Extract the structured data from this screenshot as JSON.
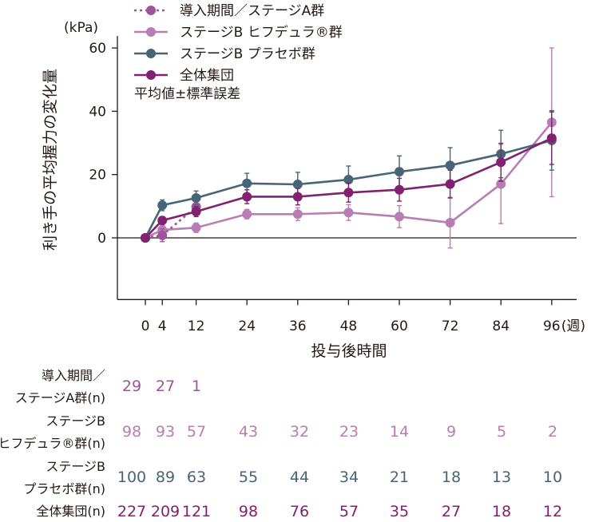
{
  "chart_data": {
    "type": "line",
    "ylabel": "利き手の平均握力の変化量",
    "yunit": "(kPa)",
    "xlabel": "投与後時間",
    "xunit": "(週)",
    "ylim": [
      -20,
      60
    ],
    "yticks": [
      0,
      20,
      40,
      60
    ],
    "xticks": [
      0,
      4,
      12,
      24,
      36,
      48,
      60,
      72,
      84,
      96
    ],
    "grid": false,
    "legend_position": "top",
    "error_note": "平均値±標準誤差",
    "series": [
      {
        "name": "導入期間／ステージA群",
        "color": "#a0529a",
        "dashed": true,
        "x": [
          0,
          4,
          12
        ],
        "y": [
          0,
          0.8,
          9.8
        ],
        "se": [
          0,
          2.0,
          0.8
        ]
      },
      {
        "name": "ステージB ヒフデュラ®群",
        "color": "#b87db2",
        "dashed": false,
        "x": [
          0,
          4,
          12,
          24,
          36,
          48,
          60,
          72,
          84,
          96
        ],
        "y": [
          0,
          2.5,
          3.2,
          7.5,
          7.5,
          8.0,
          6.7,
          4.8,
          17.0,
          36.5
        ],
        "se": [
          0,
          1.5,
          1.5,
          1.5,
          2.0,
          2.5,
          3.5,
          8.0,
          12.5,
          23.5
        ]
      },
      {
        "name": "ステージB プラセボ群",
        "color": "#476576",
        "dashed": false,
        "x": [
          0,
          4,
          12,
          24,
          36,
          48,
          60,
          72,
          84,
          96
        ],
        "y": [
          0,
          10.3,
          12.6,
          17.2,
          16.9,
          18.4,
          20.9,
          22.9,
          26.5,
          30.8
        ],
        "se": [
          0,
          1.7,
          2.2,
          3.2,
          3.8,
          4.3,
          5.0,
          5.6,
          7.5,
          9.4
        ]
      },
      {
        "name": "全体集団",
        "color": "#80226f",
        "dashed": false,
        "x": [
          0,
          4,
          12,
          24,
          36,
          48,
          60,
          72,
          84,
          96
        ],
        "y": [
          0,
          5.5,
          8.3,
          13.0,
          13.0,
          14.3,
          15.2,
          17.0,
          23.9,
          31.5
        ],
        "se": [
          0,
          1.2,
          1.6,
          2.2,
          2.6,
          3.0,
          3.6,
          4.4,
          6.0,
          8.3
        ]
      }
    ]
  },
  "table": {
    "rows": [
      {
        "label": [
          "導入期間／",
          "ステージA群(n)"
        ],
        "color": "#a0529a",
        "values": [
          "29",
          "27",
          "1"
        ]
      },
      {
        "label": [
          "ステージB",
          "ヒフデュラ®群(n)"
        ],
        "color": "#b87db2",
        "values": [
          "98",
          "93",
          "57",
          "43",
          "32",
          "23",
          "14",
          "9",
          "5",
          "2"
        ]
      },
      {
        "label": [
          "ステージB",
          "プラセボ群(n)"
        ],
        "color": "#476576",
        "values": [
          "100",
          "89",
          "63",
          "55",
          "44",
          "34",
          "21",
          "18",
          "13",
          "10"
        ]
      },
      {
        "label": [
          "全体集団(n)"
        ],
        "color": "#80226f",
        "values": [
          "227",
          "209",
          "121",
          "98",
          "76",
          "57",
          "35",
          "27",
          "18",
          "12"
        ]
      }
    ]
  }
}
